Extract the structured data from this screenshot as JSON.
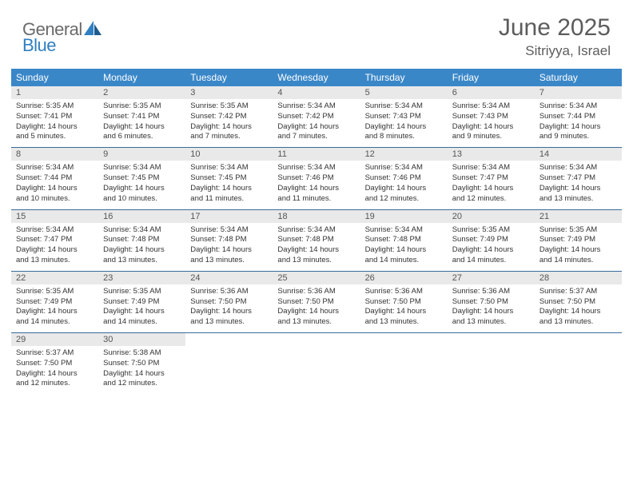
{
  "brand": {
    "part1": "General",
    "part2": "Blue"
  },
  "title": "June 2025",
  "location": "Sitriyya, Israel",
  "colors": {
    "header_bg": "#3a87c8",
    "header_text": "#ffffff",
    "daynum_bg": "#e9e9e9",
    "row_border": "#3a6a9a",
    "logo_gray": "#6a6a6a",
    "logo_blue": "#2f7fc2",
    "title_color": "#5c5c5c"
  },
  "day_labels": [
    "Sunday",
    "Monday",
    "Tuesday",
    "Wednesday",
    "Thursday",
    "Friday",
    "Saturday"
  ],
  "weeks": [
    [
      {
        "n": "1",
        "sr": "Sunrise: 5:35 AM",
        "ss": "Sunset: 7:41 PM",
        "d1": "Daylight: 14 hours",
        "d2": "and 5 minutes."
      },
      {
        "n": "2",
        "sr": "Sunrise: 5:35 AM",
        "ss": "Sunset: 7:41 PM",
        "d1": "Daylight: 14 hours",
        "d2": "and 6 minutes."
      },
      {
        "n": "3",
        "sr": "Sunrise: 5:35 AM",
        "ss": "Sunset: 7:42 PM",
        "d1": "Daylight: 14 hours",
        "d2": "and 7 minutes."
      },
      {
        "n": "4",
        "sr": "Sunrise: 5:34 AM",
        "ss": "Sunset: 7:42 PM",
        "d1": "Daylight: 14 hours",
        "d2": "and 7 minutes."
      },
      {
        "n": "5",
        "sr": "Sunrise: 5:34 AM",
        "ss": "Sunset: 7:43 PM",
        "d1": "Daylight: 14 hours",
        "d2": "and 8 minutes."
      },
      {
        "n": "6",
        "sr": "Sunrise: 5:34 AM",
        "ss": "Sunset: 7:43 PM",
        "d1": "Daylight: 14 hours",
        "d2": "and 9 minutes."
      },
      {
        "n": "7",
        "sr": "Sunrise: 5:34 AM",
        "ss": "Sunset: 7:44 PM",
        "d1": "Daylight: 14 hours",
        "d2": "and 9 minutes."
      }
    ],
    [
      {
        "n": "8",
        "sr": "Sunrise: 5:34 AM",
        "ss": "Sunset: 7:44 PM",
        "d1": "Daylight: 14 hours",
        "d2": "and 10 minutes."
      },
      {
        "n": "9",
        "sr": "Sunrise: 5:34 AM",
        "ss": "Sunset: 7:45 PM",
        "d1": "Daylight: 14 hours",
        "d2": "and 10 minutes."
      },
      {
        "n": "10",
        "sr": "Sunrise: 5:34 AM",
        "ss": "Sunset: 7:45 PM",
        "d1": "Daylight: 14 hours",
        "d2": "and 11 minutes."
      },
      {
        "n": "11",
        "sr": "Sunrise: 5:34 AM",
        "ss": "Sunset: 7:46 PM",
        "d1": "Daylight: 14 hours",
        "d2": "and 11 minutes."
      },
      {
        "n": "12",
        "sr": "Sunrise: 5:34 AM",
        "ss": "Sunset: 7:46 PM",
        "d1": "Daylight: 14 hours",
        "d2": "and 12 minutes."
      },
      {
        "n": "13",
        "sr": "Sunrise: 5:34 AM",
        "ss": "Sunset: 7:47 PM",
        "d1": "Daylight: 14 hours",
        "d2": "and 12 minutes."
      },
      {
        "n": "14",
        "sr": "Sunrise: 5:34 AM",
        "ss": "Sunset: 7:47 PM",
        "d1": "Daylight: 14 hours",
        "d2": "and 13 minutes."
      }
    ],
    [
      {
        "n": "15",
        "sr": "Sunrise: 5:34 AM",
        "ss": "Sunset: 7:47 PM",
        "d1": "Daylight: 14 hours",
        "d2": "and 13 minutes."
      },
      {
        "n": "16",
        "sr": "Sunrise: 5:34 AM",
        "ss": "Sunset: 7:48 PM",
        "d1": "Daylight: 14 hours",
        "d2": "and 13 minutes."
      },
      {
        "n": "17",
        "sr": "Sunrise: 5:34 AM",
        "ss": "Sunset: 7:48 PM",
        "d1": "Daylight: 14 hours",
        "d2": "and 13 minutes."
      },
      {
        "n": "18",
        "sr": "Sunrise: 5:34 AM",
        "ss": "Sunset: 7:48 PM",
        "d1": "Daylight: 14 hours",
        "d2": "and 13 minutes."
      },
      {
        "n": "19",
        "sr": "Sunrise: 5:34 AM",
        "ss": "Sunset: 7:48 PM",
        "d1": "Daylight: 14 hours",
        "d2": "and 14 minutes."
      },
      {
        "n": "20",
        "sr": "Sunrise: 5:35 AM",
        "ss": "Sunset: 7:49 PM",
        "d1": "Daylight: 14 hours",
        "d2": "and 14 minutes."
      },
      {
        "n": "21",
        "sr": "Sunrise: 5:35 AM",
        "ss": "Sunset: 7:49 PM",
        "d1": "Daylight: 14 hours",
        "d2": "and 14 minutes."
      }
    ],
    [
      {
        "n": "22",
        "sr": "Sunrise: 5:35 AM",
        "ss": "Sunset: 7:49 PM",
        "d1": "Daylight: 14 hours",
        "d2": "and 14 minutes."
      },
      {
        "n": "23",
        "sr": "Sunrise: 5:35 AM",
        "ss": "Sunset: 7:49 PM",
        "d1": "Daylight: 14 hours",
        "d2": "and 14 minutes."
      },
      {
        "n": "24",
        "sr": "Sunrise: 5:36 AM",
        "ss": "Sunset: 7:50 PM",
        "d1": "Daylight: 14 hours",
        "d2": "and 13 minutes."
      },
      {
        "n": "25",
        "sr": "Sunrise: 5:36 AM",
        "ss": "Sunset: 7:50 PM",
        "d1": "Daylight: 14 hours",
        "d2": "and 13 minutes."
      },
      {
        "n": "26",
        "sr": "Sunrise: 5:36 AM",
        "ss": "Sunset: 7:50 PM",
        "d1": "Daylight: 14 hours",
        "d2": "and 13 minutes."
      },
      {
        "n": "27",
        "sr": "Sunrise: 5:36 AM",
        "ss": "Sunset: 7:50 PM",
        "d1": "Daylight: 14 hours",
        "d2": "and 13 minutes."
      },
      {
        "n": "28",
        "sr": "Sunrise: 5:37 AM",
        "ss": "Sunset: 7:50 PM",
        "d1": "Daylight: 14 hours",
        "d2": "and 13 minutes."
      }
    ],
    [
      {
        "n": "29",
        "sr": "Sunrise: 5:37 AM",
        "ss": "Sunset: 7:50 PM",
        "d1": "Daylight: 14 hours",
        "d2": "and 12 minutes."
      },
      {
        "n": "30",
        "sr": "Sunrise: 5:38 AM",
        "ss": "Sunset: 7:50 PM",
        "d1": "Daylight: 14 hours",
        "d2": "and 12 minutes."
      },
      null,
      null,
      null,
      null,
      null
    ]
  ]
}
